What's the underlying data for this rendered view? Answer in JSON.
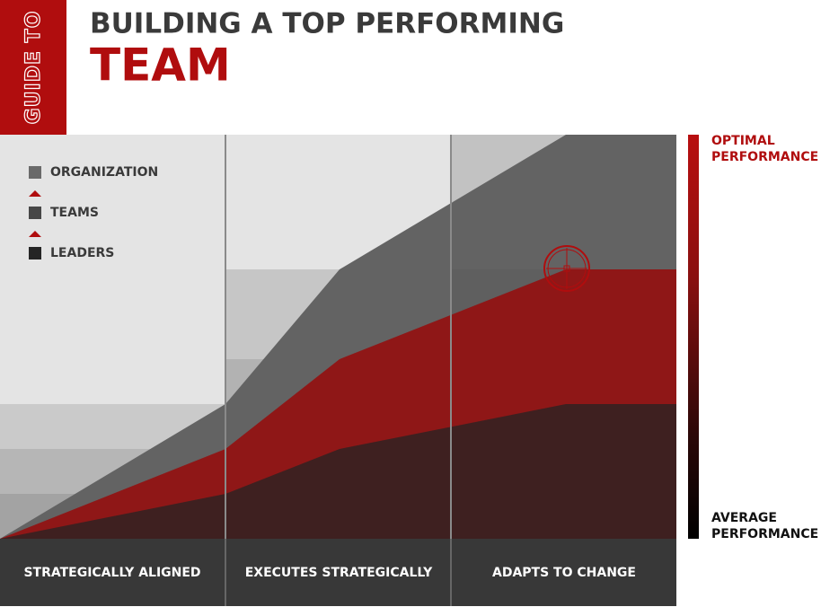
{
  "header": {
    "tab": "GUIDE TO",
    "title": "BUILDING A TOP PERFORMING",
    "title_emphasis": "TEAM"
  },
  "legend": [
    "ORGANIZATION",
    "TEAMS",
    "LEADERS"
  ],
  "columns": [
    "STRATEGICALLY ALIGNED",
    "EXECUTES STRATEGICALLY",
    "ADAPTS TO CHANGE"
  ],
  "scale": {
    "top": [
      "OPTIMAL",
      "PERFORMANCE"
    ],
    "bottom": [
      "AVERAGE",
      "PERFORMANCE"
    ]
  }
}
